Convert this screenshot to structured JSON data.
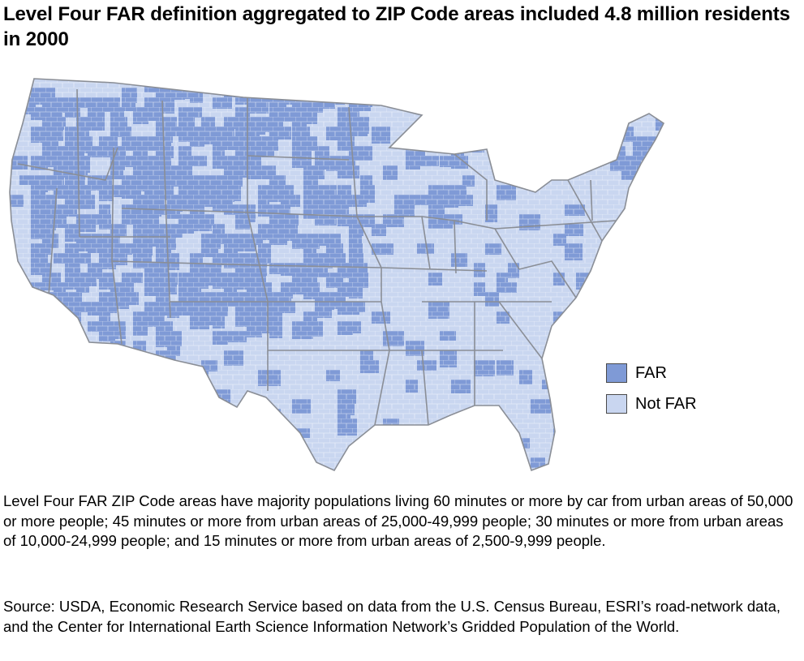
{
  "title": "Level Four FAR definition aggregated to ZIP Code areas included 4.8 million residents in 2000",
  "map": {
    "region": "Contiguous United States",
    "unit": "ZIP Code areas",
    "colors": {
      "far": "#7f9ad6",
      "not_far": "#c9d6f0",
      "state_border": "#8a8e96",
      "zip_border": "#ffffff"
    }
  },
  "legend": {
    "items": [
      {
        "label": "FAR",
        "color": "#7f9ad6"
      },
      {
        "label": "Not FAR",
        "color": "#c9d6f0"
      }
    ]
  },
  "definition_note": "Level Four FAR ZIP Code areas have majority populations living 60 minutes or more by car from urban areas of 50,000 or more people; 45 minutes or more from urban areas of 25,000-49,999 people; 30 minutes or more from urban areas of 10,000-24,999 people; and 15 minutes or more from urban areas of 2,500-9,999 people.",
  "source_note": "Source: USDA, Economic Research Service based on data from the U.S. Census Bureau, ESRI’s road-network data, and the Center for International Earth Science Information Network’s Gridded Population of the World."
}
